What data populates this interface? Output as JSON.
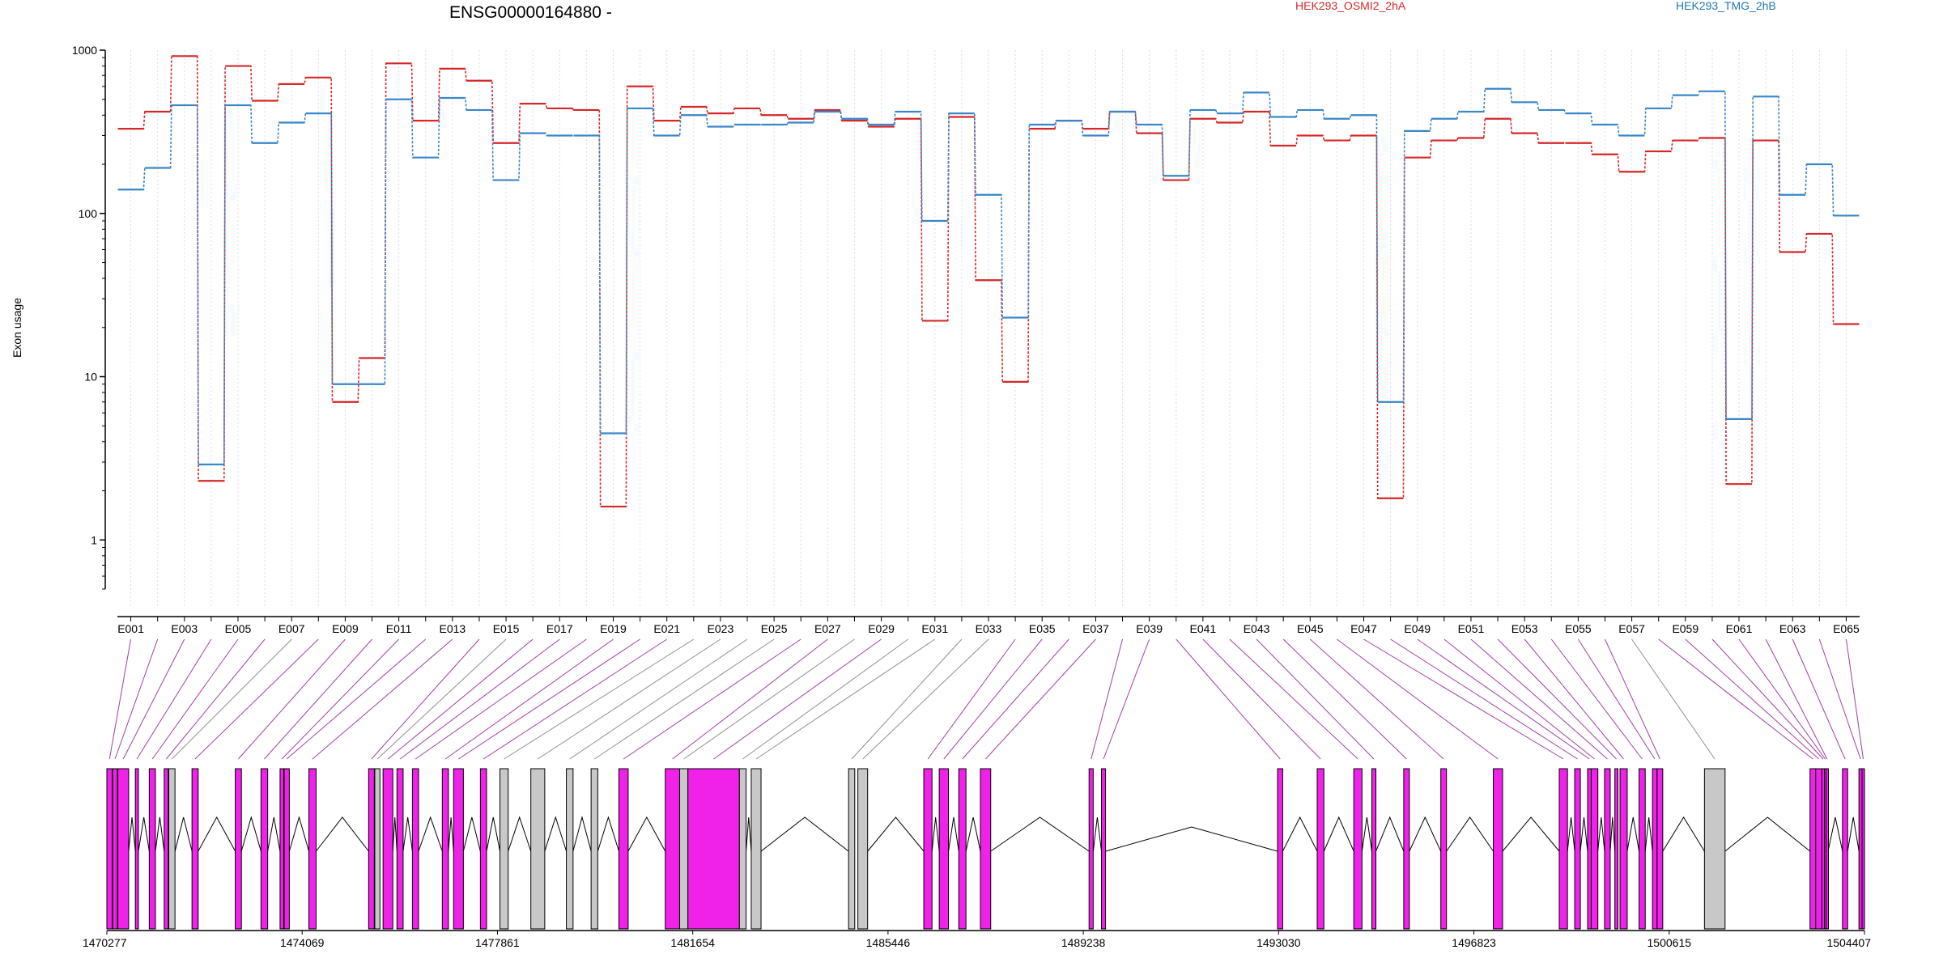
{
  "title": "ENSG00000164880 -",
  "legend": [
    {
      "name": "HEK293_OSMI2_2hA",
      "color": "#d62728"
    },
    {
      "name": "HEK293_TMG_2hB",
      "color": "#1f77b4"
    }
  ],
  "ylabel": "Exon usage",
  "colors": {
    "series_a": "#d62728",
    "series_b": "#3a86c8",
    "exon_fill": "#f021e8",
    "noncounted_fill": "#c8c8c8",
    "map_line": "#a040a0"
  },
  "chart_data": {
    "type": "line",
    "title": "ENSG00000164880 -",
    "ylabel": "Exon usage",
    "yscale": "log",
    "ylim": [
      0.5,
      1000
    ],
    "yticks": [
      {
        "v": 1,
        "label": "1"
      },
      {
        "v": 10,
        "label": "10"
      },
      {
        "v": 100,
        "label": "100"
      },
      {
        "v": 1000,
        "label": "1000"
      }
    ],
    "categories": [
      "E001",
      "E002",
      "E003",
      "E004",
      "E005",
      "E006",
      "E007",
      "E008",
      "E009",
      "E010",
      "E011",
      "E012",
      "E013",
      "E014",
      "E015",
      "E016",
      "E017",
      "E018",
      "E019",
      "E020",
      "E021",
      "E022",
      "E023",
      "E024",
      "E025",
      "E026",
      "E027",
      "E028",
      "E029",
      "E030",
      "E031",
      "E032",
      "E033",
      "E034",
      "E035",
      "E036",
      "E037",
      "E038",
      "E039",
      "E040",
      "E041",
      "E042",
      "E043",
      "E044",
      "E045",
      "E046",
      "E047",
      "E048",
      "E049",
      "E050",
      "E051",
      "E052",
      "E053",
      "E054",
      "E055",
      "E056",
      "E057",
      "E058",
      "E059",
      "E060",
      "E061",
      "E062",
      "E063",
      "E064",
      "E065"
    ],
    "series": [
      {
        "name": "HEK293_OSMI2_2hA",
        "values": [
          330,
          420,
          920,
          2.3,
          800,
          490,
          620,
          680,
          7,
          13,
          830,
          370,
          770,
          650,
          270,
          470,
          440,
          430,
          1.6,
          600,
          370,
          450,
          410,
          440,
          400,
          380,
          430,
          370,
          340,
          380,
          22,
          390,
          39,
          9.3,
          330,
          370,
          330,
          420,
          310,
          160,
          380,
          360,
          420,
          260,
          300,
          280,
          300,
          1.8,
          220,
          280,
          290,
          380,
          310,
          270,
          270,
          230,
          180,
          240,
          280,
          290,
          2.2,
          280,
          58,
          75,
          21
        ]
      },
      {
        "name": "HEK293_TMG_2hB",
        "values": [
          140,
          190,
          460,
          2.9,
          460,
          270,
          360,
          410,
          9,
          9,
          500,
          220,
          510,
          430,
          160,
          310,
          300,
          300,
          4.5,
          440,
          300,
          400,
          340,
          350,
          350,
          360,
          420,
          380,
          350,
          420,
          90,
          410,
          130,
          23,
          350,
          370,
          300,
          420,
          350,
          170,
          430,
          410,
          550,
          390,
          430,
          380,
          400,
          7,
          320,
          380,
          420,
          580,
          480,
          430,
          410,
          350,
          300,
          440,
          530,
          560,
          5.5,
          520,
          130,
          200,
          97
        ]
      }
    ],
    "tick_labels": [
      "E001",
      "E003",
      "E005",
      "E007",
      "E009",
      "E011",
      "E013",
      "E015",
      "E017",
      "E019",
      "E021",
      "E023",
      "E025",
      "E027",
      "E029",
      "E031",
      "E033",
      "E035",
      "E037",
      "E039",
      "E041",
      "E043",
      "E045",
      "E047",
      "E049",
      "E051",
      "E053",
      "E055",
      "E057",
      "E059",
      "E061",
      "E063",
      "E065"
    ],
    "genomic_axis": {
      "range": [
        1470277,
        1504407
      ],
      "ticks": [
        "1470277",
        "1474069",
        "1477861",
        "1481654",
        "1485446",
        "1489238",
        "1493030",
        "1496823",
        "1500615",
        "1504407"
      ]
    },
    "exons": [
      {
        "id": "E001",
        "start": 1470277,
        "end": 1470380,
        "counted": true
      },
      {
        "id": "E002",
        "start": 1470390,
        "end": 1470480,
        "counted": true
      },
      {
        "id": "E003",
        "start": 1470490,
        "end": 1470700,
        "counted": true
      },
      {
        "id": "E004",
        "start": 1470830,
        "end": 1470890,
        "counted": true
      },
      {
        "id": "E005",
        "start": 1471100,
        "end": 1471220,
        "counted": true
      },
      {
        "id": "E006",
        "start": 1471390,
        "end": 1471470,
        "counted": true
      },
      {
        "id": "E007",
        "start": 1471480,
        "end": 1471600,
        "counted": false
      },
      {
        "id": "E008",
        "start": 1471930,
        "end": 1472050,
        "counted": true
      },
      {
        "id": "E009",
        "start": 1472770,
        "end": 1472890,
        "counted": true
      },
      {
        "id": "E010",
        "start": 1473270,
        "end": 1473400,
        "counted": true
      },
      {
        "id": "E011",
        "start": 1473640,
        "end": 1473710,
        "counted": true
      },
      {
        "id": "E012",
        "start": 1473720,
        "end": 1473820,
        "counted": true
      },
      {
        "id": "E013",
        "start": 1474200,
        "end": 1474340,
        "counted": true
      },
      {
        "id": "E014",
        "start": 1475360,
        "end": 1475470,
        "counted": true
      },
      {
        "id": "E015",
        "start": 1475480,
        "end": 1475580,
        "counted": false
      },
      {
        "id": "E016",
        "start": 1475640,
        "end": 1475830,
        "counted": true
      },
      {
        "id": "E017",
        "start": 1475910,
        "end": 1476030,
        "counted": true
      },
      {
        "id": "E018",
        "start": 1476210,
        "end": 1476330,
        "counted": true
      },
      {
        "id": "E019",
        "start": 1476790,
        "end": 1476910,
        "counted": true
      },
      {
        "id": "E020",
        "start": 1477010,
        "end": 1477200,
        "counted": true
      },
      {
        "id": "E021",
        "start": 1477530,
        "end": 1477650,
        "counted": true
      },
      {
        "id": "E022",
        "start": 1477910,
        "end": 1478070,
        "counted": false
      },
      {
        "id": "E023",
        "start": 1478510,
        "end": 1478780,
        "counted": false
      },
      {
        "id": "E024",
        "start": 1479200,
        "end": 1479330,
        "counted": false
      },
      {
        "id": "E025",
        "start": 1479680,
        "end": 1479810,
        "counted": false
      },
      {
        "id": "E026",
        "start": 1480220,
        "end": 1480400,
        "counted": true
      },
      {
        "id": "E027",
        "start": 1481120,
        "end": 1481400,
        "counted": true
      },
      {
        "id": "E028",
        "start": 1481400,
        "end": 1481560,
        "counted": false
      },
      {
        "id": "E029",
        "start": 1481560,
        "end": 1482560,
        "counted": true
      },
      {
        "id": "E030",
        "start": 1482560,
        "end": 1482690,
        "counted": false
      },
      {
        "id": "E031",
        "start": 1482790,
        "end": 1482980,
        "counted": false
      },
      {
        "id": "E032",
        "start": 1484680,
        "end": 1484800,
        "counted": false
      },
      {
        "id": "E033",
        "start": 1484860,
        "end": 1485050,
        "counted": false
      },
      {
        "id": "E034",
        "start": 1486140,
        "end": 1486300,
        "counted": true
      },
      {
        "id": "E035",
        "start": 1486440,
        "end": 1486620,
        "counted": true
      },
      {
        "id": "E036",
        "start": 1486820,
        "end": 1486960,
        "counted": true
      },
      {
        "id": "E037",
        "start": 1487240,
        "end": 1487440,
        "counted": true
      },
      {
        "id": "E038",
        "start": 1489350,
        "end": 1489430,
        "counted": true
      },
      {
        "id": "E039",
        "start": 1489590,
        "end": 1489670,
        "counted": true
      },
      {
        "id": "E040",
        "start": 1493010,
        "end": 1493110,
        "counted": true
      },
      {
        "id": "E041",
        "start": 1493780,
        "end": 1493910,
        "counted": true
      },
      {
        "id": "E042",
        "start": 1494490,
        "end": 1494650,
        "counted": true
      },
      {
        "id": "E043",
        "start": 1494840,
        "end": 1494920,
        "counted": true
      },
      {
        "id": "E044",
        "start": 1495460,
        "end": 1495570,
        "counted": true
      },
      {
        "id": "E045",
        "start": 1496180,
        "end": 1496290,
        "counted": true
      },
      {
        "id": "E046",
        "start": 1497200,
        "end": 1497380,
        "counted": true
      },
      {
        "id": "E047",
        "start": 1498480,
        "end": 1498640,
        "counted": true
      },
      {
        "id": "E048",
        "start": 1498780,
        "end": 1498890,
        "counted": true
      },
      {
        "id": "E049",
        "start": 1499030,
        "end": 1499100,
        "counted": true
      },
      {
        "id": "E050",
        "start": 1499100,
        "end": 1499230,
        "counted": true
      },
      {
        "id": "E051",
        "start": 1499360,
        "end": 1499470,
        "counted": true
      },
      {
        "id": "E052",
        "start": 1499560,
        "end": 1499620,
        "counted": true
      },
      {
        "id": "E053",
        "start": 1499660,
        "end": 1499800,
        "counted": true
      },
      {
        "id": "E054",
        "start": 1500030,
        "end": 1500150,
        "counted": true
      },
      {
        "id": "E055",
        "start": 1500290,
        "end": 1500380,
        "counted": true
      },
      {
        "id": "E056",
        "start": 1500380,
        "end": 1500490,
        "counted": true
      },
      {
        "id": "E057",
        "start": 1501300,
        "end": 1501700,
        "counted": false
      },
      {
        "id": "E058",
        "start": 1503350,
        "end": 1503460,
        "counted": true
      },
      {
        "id": "E059",
        "start": 1503460,
        "end": 1503580,
        "counted": true
      },
      {
        "id": "E060",
        "start": 1503580,
        "end": 1503630,
        "counted": true
      },
      {
        "id": "E061",
        "start": 1503630,
        "end": 1503660,
        "counted": true
      },
      {
        "id": "E062",
        "start": 1503660,
        "end": 1503700,
        "counted": true
      },
      {
        "id": "E063",
        "start": 1503980,
        "end": 1504080,
        "counted": true
      },
      {
        "id": "E064",
        "start": 1504300,
        "end": 1504360,
        "counted": true
      },
      {
        "id": "E065",
        "start": 1504360,
        "end": 1504407,
        "counted": true
      }
    ]
  }
}
